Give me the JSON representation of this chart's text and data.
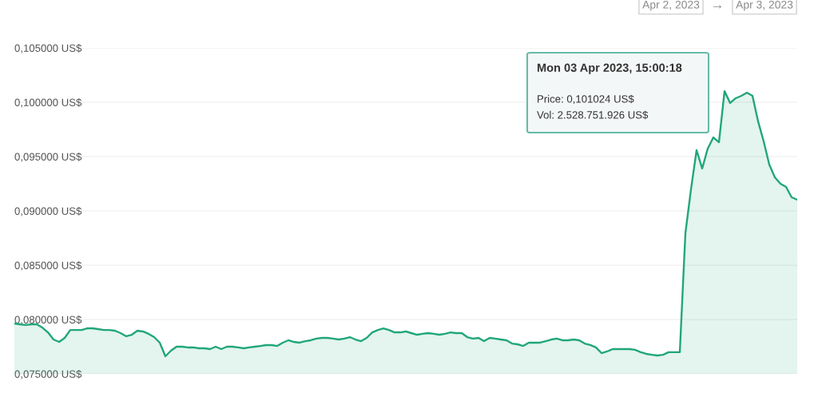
{
  "chart_data": {
    "type": "area",
    "categories": [
      null,
      null,
      null,
      null,
      null,
      null,
      null,
      null,
      null,
      null,
      null,
      null,
      null,
      null,
      null,
      null,
      null,
      null,
      null,
      null,
      null,
      null,
      null,
      null,
      null,
      null,
      null,
      null,
      null,
      null,
      null,
      null,
      null,
      null,
      null,
      null,
      null,
      null,
      null,
      null,
      null,
      null,
      null,
      null,
      null,
      null,
      null,
      null,
      null,
      null,
      null,
      null,
      null,
      null,
      null,
      null,
      null,
      null,
      null,
      null,
      null,
      null,
      null,
      null,
      null,
      null,
      null,
      null,
      null,
      null,
      null,
      null,
      null,
      null,
      null,
      null,
      null,
      null,
      null,
      null,
      null,
      null,
      null,
      null,
      null,
      null,
      null,
      null,
      null,
      null,
      null,
      null,
      null,
      null,
      null,
      null,
      null,
      null,
      null,
      null,
      null,
      null,
      null,
      null,
      null,
      null,
      null,
      null,
      null,
      null,
      null,
      null,
      null,
      null,
      null,
      null,
      null,
      null,
      null,
      null,
      null,
      null,
      null,
      null,
      null,
      null,
      null,
      null,
      null,
      null,
      null,
      null,
      null,
      null,
      null,
      null,
      null,
      null,
      null,
      null,
      null
    ],
    "series": [
      {
        "color": "#20a67a",
        "values": [
          0.07963,
          0.07956,
          0.07949,
          0.07956,
          0.07956,
          0.07926,
          0.07882,
          0.07816,
          0.07794,
          0.07831,
          0.07904,
          0.07904,
          0.07904,
          0.07919,
          0.07919,
          0.07912,
          0.07904,
          0.07904,
          0.07897,
          0.07875,
          0.07846,
          0.0786,
          0.07897,
          0.0789,
          0.07868,
          0.07838,
          0.07787,
          0.07662,
          0.07713,
          0.0775,
          0.0775,
          0.07743,
          0.07743,
          0.07735,
          0.07735,
          0.07728,
          0.0775,
          0.07728,
          0.0775,
          0.0775,
          0.07743,
          0.07735,
          0.07743,
          0.0775,
          0.07757,
          0.07765,
          0.07765,
          0.07757,
          0.07787,
          0.07809,
          0.07794,
          0.07787,
          0.07801,
          0.07809,
          0.07824,
          0.07831,
          0.07831,
          0.07824,
          0.07816,
          0.07824,
          0.07838,
          0.07816,
          0.07801,
          0.07831,
          0.07882,
          0.07904,
          0.07919,
          0.07904,
          0.07882,
          0.07882,
          0.0789,
          0.07875,
          0.0786,
          0.07868,
          0.07875,
          0.07868,
          0.0786,
          0.07868,
          0.07882,
          0.07875,
          0.07875,
          0.07838,
          0.07824,
          0.07831,
          0.07801,
          0.07831,
          0.07824,
          0.07816,
          0.07809,
          0.07779,
          0.07772,
          0.07757,
          0.07787,
          0.07787,
          0.07787,
          0.07801,
          0.07816,
          0.07824,
          0.07809,
          0.07809,
          0.07816,
          0.07809,
          0.07779,
          0.07765,
          0.07743,
          0.07691,
          0.07706,
          0.07728,
          0.07728,
          0.07728,
          0.07728,
          0.07721,
          0.07699,
          0.07684,
          0.07676,
          0.07669,
          0.07676,
          0.07699,
          0.07699,
          0.07699,
          0.08794,
          0.09199,
          0.09559,
          0.0939,
          0.09574,
          0.09676,
          0.09632,
          0.10102,
          0.09993,
          0.10037,
          0.10059,
          0.10088,
          0.10059,
          0.09824,
          0.0964,
          0.09426,
          0.09309,
          0.0925,
          0.09221,
          0.09125,
          0.09103
        ]
      }
    ],
    "ylim": [
      0.075,
      0.105
    ],
    "yticks": [
      {
        "value": 0.075,
        "label": "0,075000 US$"
      },
      {
        "value": 0.08,
        "label": "0,080000 US$"
      },
      {
        "value": 0.085,
        "label": "0,085000 US$"
      },
      {
        "value": 0.09,
        "label": "0,090000 US$"
      },
      {
        "value": 0.095,
        "label": "0,095000 US$"
      },
      {
        "value": 0.1,
        "label": "0,100000 US$"
      },
      {
        "value": 0.105,
        "label": "0,105000 US$"
      }
    ],
    "grid": "y",
    "tick_labels": "y",
    "annotations": [
      "Mon 03 Apr 2023, 15:00:18",
      "Price: 0,101024 US$",
      "Vol: 2.528.751.926 US$",
      "Apr 2, 2023",
      "→",
      "Apr 3, 2023"
    ]
  }
}
